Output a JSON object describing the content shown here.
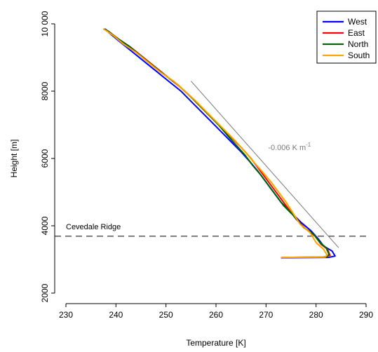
{
  "chart_data": {
    "type": "line",
    "xlabel": "Temperature [K]",
    "ylabel": "Height [m]",
    "xlim": [
      230,
      290
    ],
    "ylim": [
      2000,
      10000
    ],
    "xticks": [
      "230",
      "240",
      "250",
      "260",
      "270",
      "280",
      "290"
    ],
    "yticks": [
      "2000",
      "4000",
      "6000",
      "8000",
      "10 000"
    ],
    "legend_position": "top-right",
    "series": [
      {
        "name": "West",
        "color": "#0000ff",
        "points": [
          [
            273.0,
            3050
          ],
          [
            282.5,
            3060
          ],
          [
            283.8,
            3100
          ],
          [
            283.2,
            3250
          ],
          [
            281.5,
            3400
          ],
          [
            280.5,
            3600
          ],
          [
            279.0,
            3850
          ],
          [
            277.0,
            4100
          ],
          [
            275.0,
            4400
          ],
          [
            273.0,
            4700
          ],
          [
            271.5,
            5000
          ],
          [
            270.0,
            5300
          ],
          [
            268.5,
            5600
          ],
          [
            266.8,
            5900
          ],
          [
            265.0,
            6200
          ],
          [
            263.0,
            6500
          ],
          [
            261.0,
            6800
          ],
          [
            259.0,
            7100
          ],
          [
            257.0,
            7400
          ],
          [
            255.0,
            7700
          ],
          [
            253.0,
            8000
          ],
          [
            250.5,
            8300
          ],
          [
            248.0,
            8600
          ],
          [
            245.5,
            8900
          ],
          [
            243.0,
            9200
          ],
          [
            240.5,
            9500
          ],
          [
            238.5,
            9750
          ],
          [
            238.0,
            9830
          ],
          [
            237.8,
            9850
          ]
        ]
      },
      {
        "name": "East",
        "color": "#ff0000",
        "points": [
          [
            273.2,
            3060
          ],
          [
            281.5,
            3070
          ],
          [
            282.8,
            3120
          ],
          [
            282.3,
            3300
          ],
          [
            281.0,
            3450
          ],
          [
            279.8,
            3700
          ],
          [
            278.0,
            3900
          ],
          [
            276.0,
            4200
          ],
          [
            274.5,
            4500
          ],
          [
            273.0,
            4800
          ],
          [
            271.5,
            5100
          ],
          [
            270.0,
            5400
          ],
          [
            268.5,
            5700
          ],
          [
            267.0,
            6000
          ],
          [
            265.2,
            6300
          ],
          [
            263.2,
            6600
          ],
          [
            261.2,
            6900
          ],
          [
            259.2,
            7200
          ],
          [
            257.2,
            7500
          ],
          [
            255.2,
            7800
          ],
          [
            253.0,
            8100
          ],
          [
            250.5,
            8400
          ],
          [
            248.0,
            8700
          ],
          [
            245.5,
            9000
          ],
          [
            243.0,
            9300
          ],
          [
            240.5,
            9550
          ],
          [
            238.5,
            9780
          ],
          [
            237.5,
            9850
          ]
        ]
      },
      {
        "name": "North",
        "color": "#006400",
        "points": [
          [
            273.3,
            3060
          ],
          [
            282.0,
            3070
          ],
          [
            282.6,
            3150
          ],
          [
            282.0,
            3350
          ],
          [
            280.8,
            3500
          ],
          [
            279.5,
            3750
          ],
          [
            277.5,
            3950
          ],
          [
            275.5,
            4300
          ],
          [
            273.5,
            4600
          ],
          [
            272.0,
            4900
          ],
          [
            270.5,
            5200
          ],
          [
            269.0,
            5500
          ],
          [
            267.3,
            5800
          ],
          [
            265.8,
            6100
          ],
          [
            264.0,
            6400
          ],
          [
            262.2,
            6700
          ],
          [
            260.5,
            7000
          ],
          [
            258.5,
            7300
          ],
          [
            256.5,
            7600
          ],
          [
            254.5,
            7900
          ],
          [
            252.3,
            8200
          ],
          [
            250.0,
            8450
          ],
          [
            247.5,
            8750
          ],
          [
            245.0,
            9050
          ],
          [
            242.5,
            9350
          ],
          [
            240.0,
            9600
          ],
          [
            238.3,
            9800
          ],
          [
            237.6,
            9850
          ]
        ]
      },
      {
        "name": "South",
        "color": "#ffa500",
        "points": [
          [
            273.0,
            3060
          ],
          [
            281.8,
            3070
          ],
          [
            282.2,
            3130
          ],
          [
            281.5,
            3300
          ],
          [
            280.0,
            3500
          ],
          [
            278.8,
            3800
          ],
          [
            276.8,
            4050
          ],
          [
            275.3,
            4400
          ],
          [
            274.0,
            4700
          ],
          [
            272.5,
            5000
          ],
          [
            271.0,
            5300
          ],
          [
            269.3,
            5600
          ],
          [
            267.5,
            5900
          ],
          [
            265.8,
            6200
          ],
          [
            264.0,
            6500
          ],
          [
            262.0,
            6800
          ],
          [
            260.0,
            7100
          ],
          [
            258.0,
            7400
          ],
          [
            256.0,
            7700
          ],
          [
            253.8,
            8000
          ],
          [
            251.5,
            8300
          ],
          [
            249.0,
            8550
          ],
          [
            246.5,
            8850
          ],
          [
            244.0,
            9150
          ],
          [
            241.5,
            9400
          ],
          [
            239.5,
            9650
          ],
          [
            238.0,
            9800
          ],
          [
            237.5,
            9850
          ]
        ]
      }
    ],
    "reference_line": {
      "label": "-0.006 K m",
      "label_superscript": "-1",
      "color": "#777777",
      "points": [
        [
          255.0,
          8300
        ],
        [
          284.5,
          3350
        ]
      ],
      "label_position": [
        270.0,
        6250
      ]
    },
    "horizontal_line": {
      "label": "Cevedale Ridge",
      "y": 3690,
      "style": "dashed",
      "label_position": [
        230.0,
        3850
      ]
    }
  }
}
